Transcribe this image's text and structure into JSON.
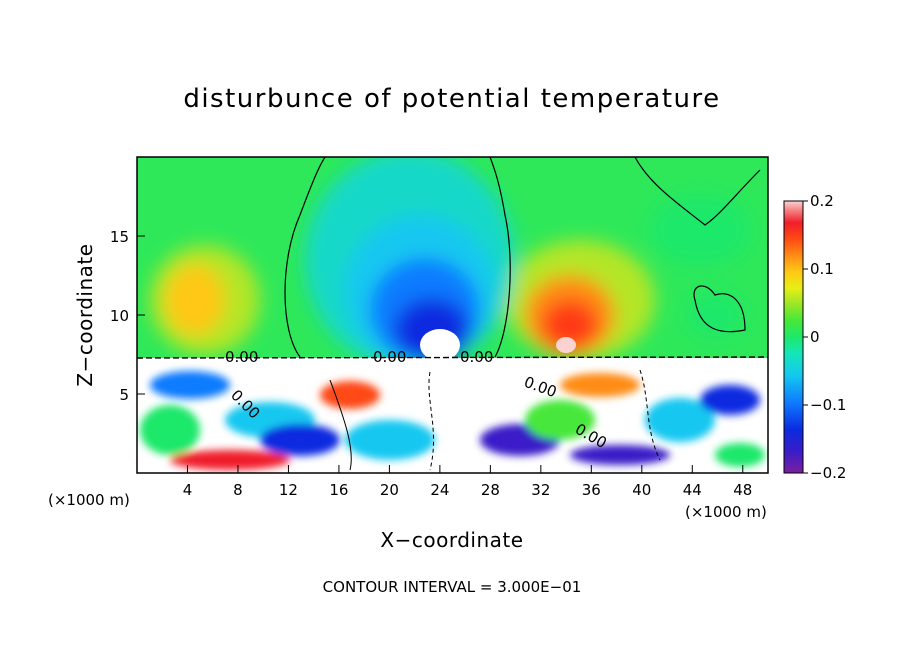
{
  "chart_data": {
    "type": "heatmap",
    "title": "disturbunce of potential temperature",
    "xlabel": "X−coordinate",
    "ylabel": "Z−coordinate",
    "x_unit_left": "(×1000 m)",
    "x_unit_right": "(×1000 m)",
    "xlim": [
      0,
      50
    ],
    "ylim": [
      0,
      20
    ],
    "x_ticks": [
      4,
      8,
      12,
      16,
      20,
      24,
      28,
      32,
      36,
      40,
      44,
      48
    ],
    "y_ticks": [
      5,
      10,
      15
    ],
    "colorbar": {
      "min": -0.2,
      "max": 0.2,
      "ticks": [
        0.2,
        0.1,
        0,
        -0.1,
        -0.2
      ],
      "tick_labels": [
        "0.2",
        "0.1",
        "0",
        "−0.1",
        "−0.2"
      ]
    },
    "contour_labels": [
      "0.00",
      "0.00",
      "0.00",
      "0.00",
      "0.00",
      "0.00"
    ],
    "contour_interval_text": "CONTOUR INTERVAL = 3.000E−01",
    "features": [
      {
        "name": "cold anomaly",
        "x": 24,
        "z": 11,
        "value": -0.2
      },
      {
        "name": "warm anomaly",
        "x": 34,
        "z": 10,
        "value": 0.13
      },
      {
        "name": "warm anomaly",
        "x": 4.5,
        "z": 11,
        "value": 0.07
      }
    ]
  }
}
